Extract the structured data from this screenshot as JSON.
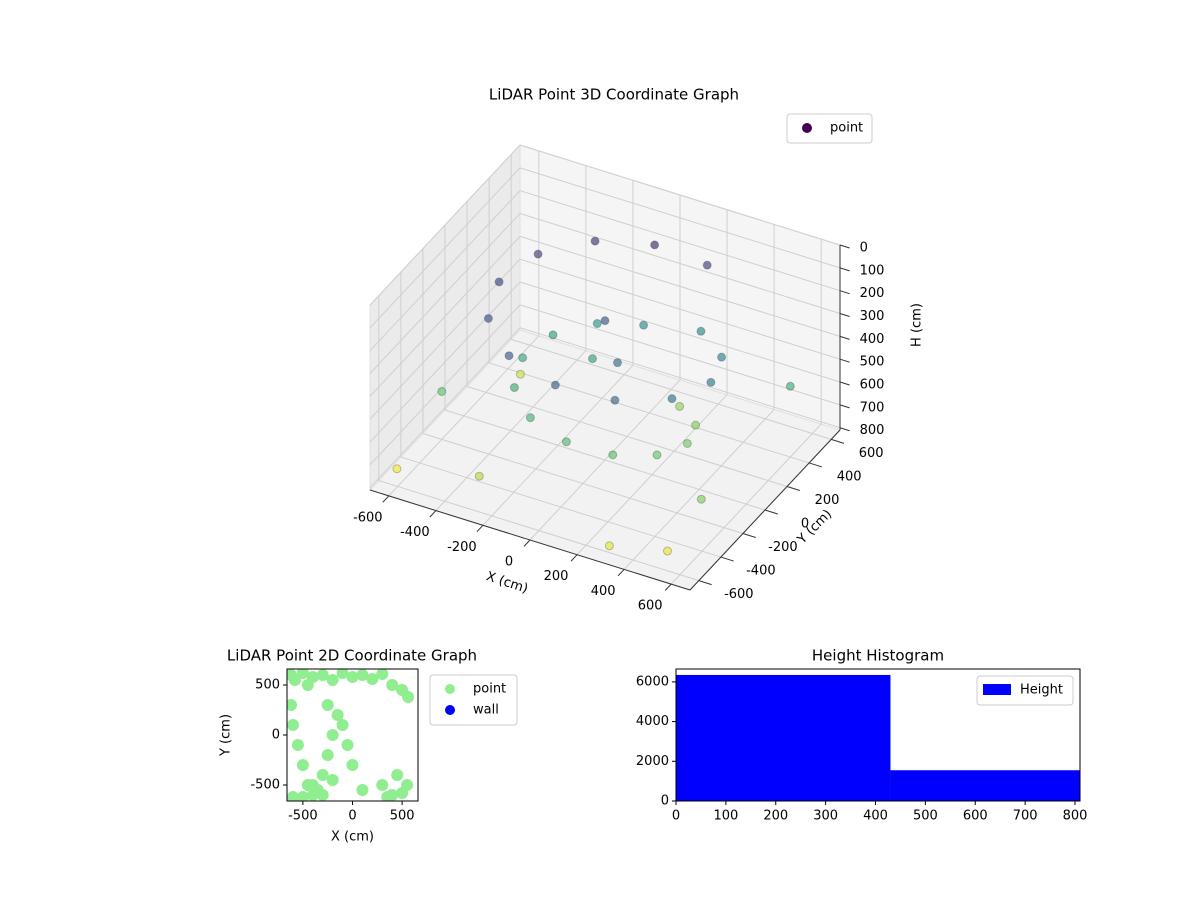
{
  "chart_data": [
    {
      "type": "scatter3d",
      "title": "LiDAR Point 3D Coordinate Graph",
      "x_label": "X (cm)",
      "y_label": "Y (cm)",
      "z_label": "H (cm)",
      "xlim": [
        -680,
        680
      ],
      "ylim": [
        -680,
        680
      ],
      "zlim": [
        0,
        810
      ],
      "z_inverted": true,
      "xticks": [
        -600,
        -400,
        -200,
        0,
        200,
        400,
        600
      ],
      "yticks": [
        -600,
        -400,
        -200,
        0,
        200,
        400,
        600
      ],
      "zticks": [
        0,
        100,
        200,
        300,
        400,
        500,
        600,
        700,
        800
      ],
      "colormap": "viridis",
      "grid": true,
      "legend": "upper right",
      "series": [
        {
          "name": "point",
          "color": "#440154",
          "x": [
            0,
            -225,
            -390,
            -450,
            -390,
            -225,
            0,
            225,
            390,
            450,
            390,
            225,
            0,
            -175,
            -303,
            -350,
            -303,
            -175,
            0,
            175,
            303,
            350,
            303,
            175,
            -600,
            -500,
            300,
            500,
            -650,
            600,
            200,
            -300,
            550,
            -100,
            100,
            0
          ],
          "y": [
            450,
            390,
            225,
            0,
            -225,
            -390,
            -450,
            -390,
            -225,
            0,
            225,
            390,
            350,
            303,
            175,
            0,
            -175,
            -303,
            -350,
            -303,
            -175,
            0,
            175,
            303,
            -200,
            300,
            -600,
            -500,
            -500,
            400,
            500,
            -500,
            -300,
            100,
            -100,
            0
          ],
          "z": [
            100,
            125,
            150,
            175,
            200,
            225,
            250,
            275,
            300,
            325,
            350,
            375,
            400,
            425,
            450,
            475,
            500,
            525,
            550,
            575,
            600,
            625,
            650,
            675,
            600,
            750,
            780,
            790,
            800,
            500,
            150,
            720,
            650,
            450,
            300,
            200
          ]
        }
      ]
    },
    {
      "type": "scatter",
      "title": "LiDAR Point 2D Coordinate Graph",
      "x_label": "X (cm)",
      "y_label": "Y (cm)",
      "xlim": [
        -660,
        660
      ],
      "ylim": [
        -660,
        660
      ],
      "xticks": [
        -500,
        0,
        500
      ],
      "yticks": [
        -500,
        0,
        500
      ],
      "legend": "outside right",
      "series": [
        {
          "name": "point",
          "color": "#90ee90",
          "x": [
            -620,
            -580,
            -500,
            -450,
            -400,
            -300,
            -200,
            -100,
            0,
            100,
            200,
            300,
            400,
            500,
            560,
            -620,
            -600,
            -550,
            -500,
            -450,
            -400,
            -350,
            -300,
            -250,
            -200,
            -150,
            -600,
            -500,
            -400,
            -300,
            -200,
            0,
            100,
            300,
            400,
            500,
            550,
            450,
            350,
            -100,
            -50,
            -250
          ],
          "y": [
            600,
            550,
            620,
            500,
            580,
            600,
            550,
            620,
            580,
            600,
            560,
            610,
            500,
            450,
            380,
            300,
            100,
            -100,
            -300,
            -500,
            -600,
            -550,
            -400,
            -200,
            0,
            200,
            -620,
            -620,
            -500,
            -600,
            -450,
            -300,
            -550,
            -500,
            -600,
            -580,
            -500,
            -400,
            -620,
            100,
            -100,
            300
          ]
        },
        {
          "name": "wall",
          "color": "#0000ff",
          "x": [],
          "y": []
        }
      ]
    },
    {
      "type": "histogram",
      "title": "Height Histogram",
      "xlim": [
        0,
        810
      ],
      "ylim": [
        0,
        6650
      ],
      "xticks": [
        0,
        100,
        200,
        300,
        400,
        500,
        600,
        700,
        800
      ],
      "yticks": [
        0,
        2000,
        4000,
        6000
      ],
      "legend": "upper right",
      "bins": [
        0,
        430,
        810
      ],
      "series": [
        {
          "name": "Height",
          "color": "#0000ff",
          "values": [
            6350,
            1550
          ]
        }
      ]
    }
  ]
}
